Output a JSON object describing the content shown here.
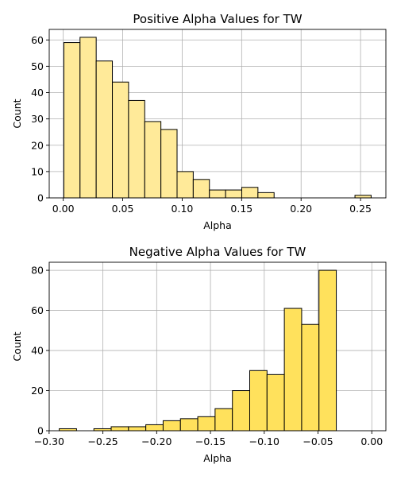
{
  "chart_data": [
    {
      "type": "bar",
      "title": "Positive Alpha Values for TW",
      "xlabel": "Alpha",
      "ylabel": "Count",
      "color": "#ffea99",
      "bin_width": 0.0136,
      "bin_starts": [
        0.0005,
        0.0141,
        0.0277,
        0.0413,
        0.0549,
        0.0685,
        0.0821,
        0.0957,
        0.1093,
        0.1229,
        0.1365,
        0.1501,
        0.1637,
        0.1773,
        0.1909,
        0.2045,
        0.2181,
        0.2317,
        0.2453
      ],
      "values": [
        59,
        61,
        52,
        44,
        37,
        29,
        26,
        10,
        7,
        3,
        3,
        4,
        2,
        0,
        0,
        0,
        0,
        0,
        1
      ],
      "xlim": [
        -0.0118,
        0.2713
      ],
      "ylim": [
        0,
        64
      ],
      "xticks": [
        0.0,
        0.05,
        0.1,
        0.15,
        0.2,
        0.25
      ],
      "xtick_labels": [
        "0.00",
        "0.05",
        "0.10",
        "0.15",
        "0.20",
        "0.25"
      ],
      "yticks": [
        0,
        10,
        20,
        30,
        40,
        50,
        60
      ],
      "ytick_labels": [
        "0",
        "10",
        "20",
        "30",
        "40",
        "50",
        "60"
      ],
      "grid": true
    },
    {
      "type": "bar",
      "title": "Negative Alpha Values for TW",
      "xlabel": "Alpha",
      "ylabel": "Count",
      "color": "#ffe15c",
      "bin_width": 0.0161,
      "bin_starts": [
        -0.2906,
        -0.2745,
        -0.2584,
        -0.2423,
        -0.2262,
        -0.2101,
        -0.194,
        -0.1779,
        -0.1618,
        -0.1457,
        -0.1296,
        -0.1135,
        -0.0974,
        -0.0813,
        -0.0652,
        -0.0491,
        -0.033,
        -0.0169
      ],
      "values": [
        1,
        0,
        1,
        2,
        2,
        3,
        5,
        6,
        7,
        11,
        20,
        30,
        28,
        61,
        53,
        80,
        0,
        0
      ],
      "xlim": [
        -0.2999,
        0.0131
      ],
      "ylim": [
        0,
        84
      ],
      "xticks": [
        -0.3,
        -0.25,
        -0.2,
        -0.15,
        -0.1,
        -0.05,
        0.0
      ],
      "xtick_labels": [
        "−0.30",
        "−0.25",
        "−0.20",
        "−0.15",
        "−0.10",
        "−0.05",
        "0.00"
      ],
      "yticks": [
        0,
        20,
        40,
        60,
        80
      ],
      "ytick_labels": [
        "0",
        "20",
        "40",
        "60",
        "80"
      ],
      "grid": true
    }
  ]
}
